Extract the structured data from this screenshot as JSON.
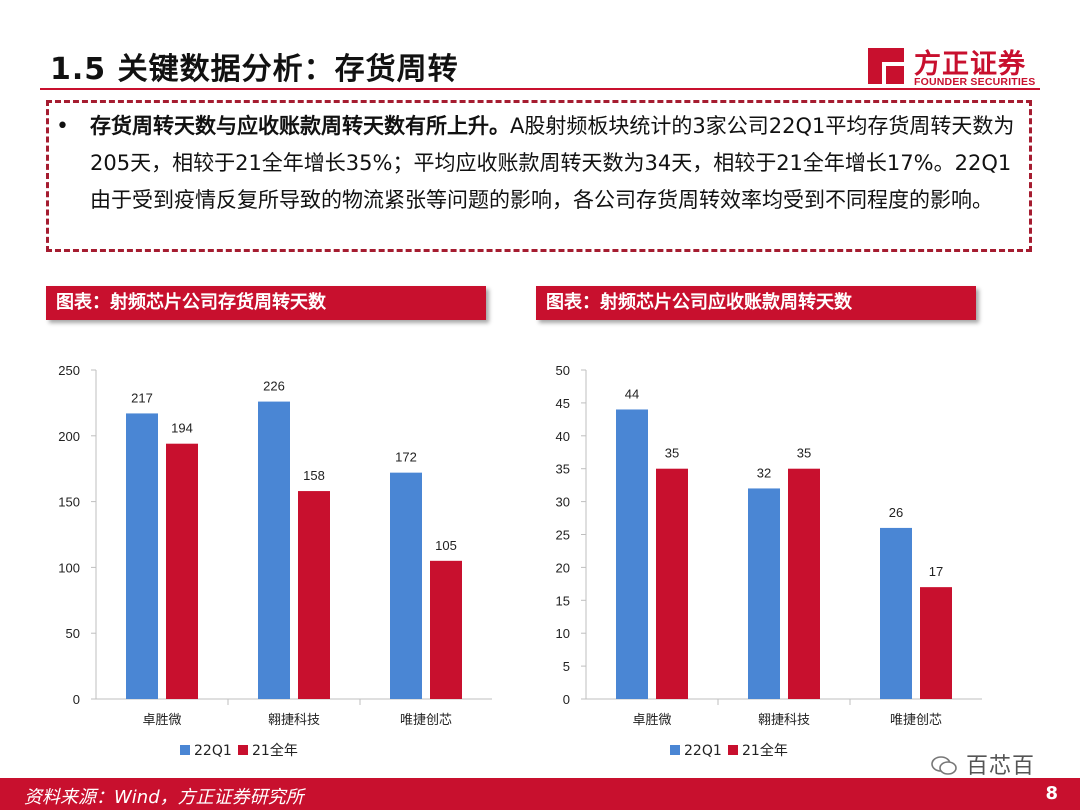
{
  "page": {
    "title": "1.5 关键数据分析：存货周转",
    "number": "8"
  },
  "logo": {
    "name_cn": "方正证券",
    "name_en": "FOUNDER SECURITIES"
  },
  "summary": {
    "bullet": "•",
    "bold_lead": "存货周转天数与应收账款周转天数有所上升。",
    "body": "A股射频板块统计的3家公司22Q1平均存货周转天数为205天，相较于21全年增长35%；平均应收账款周转天数为34天，相较于21全年增长17%。22Q1由于受到疫情反复所导致的物流紧张等问题的影响，各公司存货周转效率均受到不同程度的影响。"
  },
  "colors": {
    "brand_red": "#c8102e",
    "series_blue": "#4a86d4",
    "series_red": "#c8102e"
  },
  "chart_data": [
    {
      "type": "bar",
      "title": "图表：射频芯片公司存货周转天数",
      "categories": [
        "卓胜微",
        "翱捷科技",
        "唯捷创芯"
      ],
      "series": [
        {
          "name": "22Q1",
          "values": [
            217,
            226,
            172
          ]
        },
        {
          "name": "21全年",
          "values": [
            194,
            158,
            105
          ]
        }
      ],
      "ylim": [
        0,
        250
      ],
      "yticks": [
        0,
        50,
        100,
        150,
        200,
        250
      ],
      "grid": false,
      "legend": "bottom-left"
    },
    {
      "type": "bar",
      "title": "图表：射频芯片公司应收账款周转天数",
      "categories": [
        "卓胜微",
        "翱捷科技",
        "唯捷创芯"
      ],
      "series": [
        {
          "name": "22Q1",
          "values": [
            44,
            32,
            26
          ]
        },
        {
          "name": "21全年",
          "values": [
            35,
            35,
            17
          ]
        }
      ],
      "ylim": [
        0,
        50
      ],
      "yticks": [
        0,
        5,
        10,
        15,
        20,
        25,
        30,
        35,
        40,
        45,
        50
      ],
      "grid": false,
      "legend": "bottom-left"
    }
  ],
  "footer": {
    "source": "资料来源：Wind，方正证券研究所"
  },
  "watermark": {
    "text": "百芯百"
  }
}
